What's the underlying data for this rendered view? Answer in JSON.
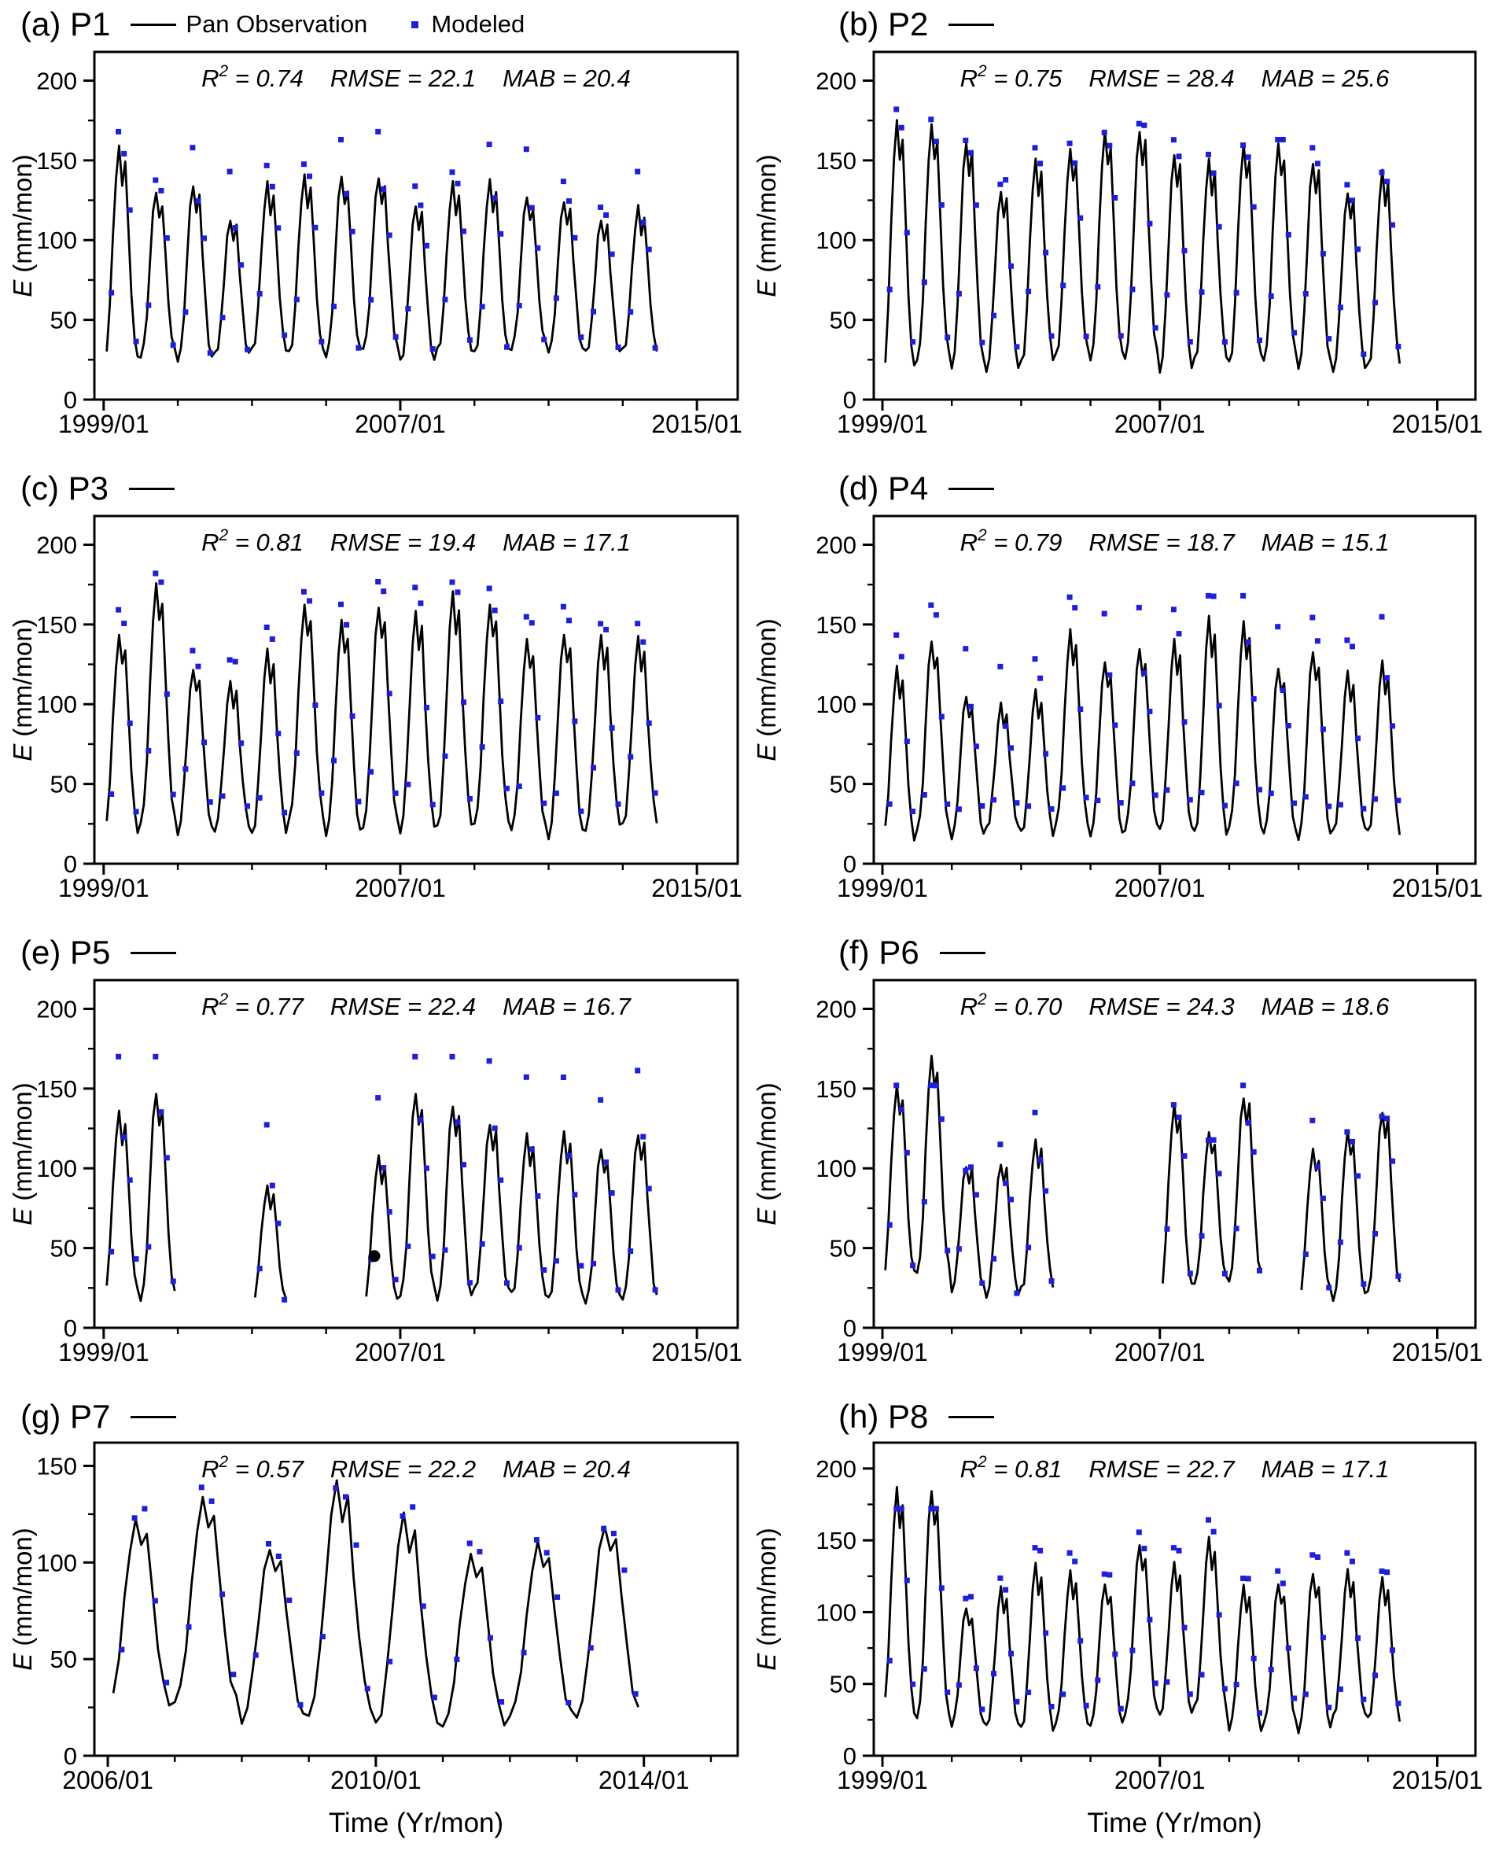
{
  "figure": {
    "legend": {
      "obs": "Pan Observation",
      "mod": "Modeled"
    },
    "x_axis_title": "Time (Yr/mon)",
    "y_axis_title_italic": "E",
    "y_axis_title_rest": " (mm/mon)",
    "stats_labels": {
      "r2": "R",
      "r2_sup": "2",
      "rmse": "RMSE",
      "mab": "MAB",
      "eq": " = "
    },
    "colors": {
      "obs_line": "#000000",
      "mod_dot": "#1f1fd6",
      "special_dot": "#000000",
      "axis": "#000000"
    },
    "seasonal_shape": [
      0.02,
      0.08,
      0.28,
      0.58,
      0.86,
      1.0,
      0.84,
      0.93,
      0.62,
      0.34,
      0.13,
      0.04
    ],
    "jitter": [
      14,
      -6,
      4,
      19,
      -3,
      8,
      -12,
      6,
      16,
      -9,
      2,
      10,
      -5,
      13,
      -15,
      3,
      20,
      -2,
      7,
      -10
    ]
  },
  "chart_data": [
    {
      "type": "line+scatter",
      "key": "a",
      "label": "(a)",
      "site": "P1",
      "col": "left",
      "show_legend": true,
      "bottom_row": false,
      "stats": {
        "r2": "0.74",
        "rmse": "22.1",
        "mab": "20.4"
      },
      "x_axis": {
        "majors": [
          [
            1999,
            "1999/01"
          ],
          [
            2007,
            "2007/01"
          ],
          [
            2015,
            "2015/01"
          ]
        ],
        "minor_step": 2,
        "range": [
          1998.75,
          2016.1
        ]
      },
      "y_axis": {
        "majors": [
          0,
          50,
          100,
          150,
          200
        ],
        "minor_step": 25,
        "range": [
          0,
          218
        ]
      },
      "obs_segments": [
        {
          "start_year": 1999,
          "peaks": [
            158,
            130,
            135,
            113,
            135,
            140,
            140,
            140,
            122,
            135,
            137,
            127,
            125,
            113,
            120
          ],
          "mins": [
            20,
            25,
            22,
            25,
            28,
            26,
            25,
            30,
            20,
            28,
            26,
            30,
            28,
            26,
            28
          ]
        }
      ],
      "mod_bias": 16,
      "mod_cap": 168
    },
    {
      "type": "line+scatter",
      "key": "b",
      "label": "(b)",
      "site": "P2",
      "col": "right",
      "show_legend": false,
      "bottom_row": false,
      "stats": {
        "r2": "0.75",
        "rmse": "28.4",
        "mab": "25.6"
      },
      "x_axis": {
        "majors": [
          [
            1999,
            "1999/01"
          ],
          [
            2007,
            "2007/01"
          ],
          [
            2015,
            "2015/01"
          ]
        ],
        "minor_step": 2,
        "range": [
          1998.75,
          2016.1
        ]
      },
      "y_axis": {
        "majors": [
          0,
          50,
          100,
          150,
          200
        ],
        "minor_step": 25,
        "range": [
          0,
          218
        ]
      },
      "obs_segments": [
        {
          "start_year": 1999,
          "peaks": [
            175,
            172,
            163,
            132,
            150,
            157,
            168,
            170,
            155,
            150,
            160,
            160,
            150,
            131,
            143
          ],
          "mins": [
            12,
            22,
            18,
            16,
            20,
            25,
            22,
            24,
            15,
            22,
            20,
            22,
            18,
            16,
            18
          ]
        }
      ],
      "mod_bias": 10,
      "mod_cap": 182
    },
    {
      "type": "line+scatter",
      "key": "c",
      "label": "(c)",
      "site": "P3",
      "col": "left",
      "show_legend": false,
      "bottom_row": false,
      "stats": {
        "r2": "0.81",
        "rmse": "19.4",
        "mab": "17.1"
      },
      "x_axis": {
        "majors": [
          [
            1999,
            "1999/01"
          ],
          [
            2007,
            "2007/01"
          ],
          [
            2015,
            "2015/01"
          ]
        ],
        "minor_step": 2,
        "range": [
          1998.75,
          2016.1
        ]
      },
      "y_axis": {
        "majors": [
          0,
          50,
          100,
          150,
          200
        ],
        "minor_step": 25,
        "range": [
          0,
          218
        ]
      },
      "obs_segments": [
        {
          "start_year": 1999,
          "peaks": [
            143,
            175,
            123,
            113,
            132,
            162,
            152,
            162,
            157,
            168,
            162,
            140,
            145,
            142,
            140
          ],
          "mins": [
            15,
            22,
            18,
            20,
            16,
            25,
            14,
            22,
            18,
            20,
            22,
            18,
            15,
            20,
            22
          ]
        }
      ],
      "mod_bias": 12,
      "mod_cap": 182
    },
    {
      "type": "line+scatter",
      "key": "d",
      "label": "(d)",
      "site": "P4",
      "col": "right",
      "show_legend": false,
      "bottom_row": false,
      "stats": {
        "r2": "0.79",
        "rmse": "18.7",
        "mab": "15.1"
      },
      "x_axis": {
        "majors": [
          [
            1999,
            "1999/01"
          ],
          [
            2007,
            "2007/01"
          ],
          [
            2015,
            "2015/01"
          ]
        ],
        "minor_step": 2,
        "range": [
          1998.75,
          2016.1
        ]
      },
      "y_axis": {
        "majors": [
          0,
          50,
          100,
          150,
          200
        ],
        "minor_step": 25,
        "range": [
          0,
          218
        ]
      },
      "obs_segments": [
        {
          "start_year": 1999,
          "peaks": [
            122,
            140,
            105,
            98,
            107,
            145,
            127,
            135,
            138,
            153,
            150,
            123,
            133,
            118,
            125
          ],
          "mins": [
            12,
            18,
            15,
            20,
            16,
            22,
            14,
            20,
            18,
            15,
            20,
            16,
            14,
            18,
            16
          ]
        }
      ],
      "mod_bias": 20,
      "mod_cap": 168
    },
    {
      "type": "line+scatter",
      "key": "e",
      "label": "(e)",
      "site": "P5",
      "col": "left",
      "show_legend": false,
      "bottom_row": false,
      "stats": {
        "r2": "0.77",
        "rmse": "22.4",
        "mab": "16.7"
      },
      "x_axis": {
        "majors": [
          [
            1999,
            "1999/01"
          ],
          [
            2007,
            "2007/01"
          ],
          [
            2015,
            "2015/01"
          ]
        ],
        "minor_step": 2,
        "range": [
          1998.75,
          2016.1
        ]
      },
      "y_axis": {
        "majors": [
          0,
          50,
          100,
          150,
          200
        ],
        "minor_step": 25,
        "range": [
          0,
          218
        ]
      },
      "obs_segments": [
        {
          "start_year": 1999,
          "peaks": [
            135,
            147
          ],
          "mins": [
            18,
            15
          ]
        },
        {
          "start_year": 2003,
          "peaks": [
            88
          ],
          "mins": [
            14
          ]
        },
        {
          "start_year": 2006,
          "peaks": [
            107,
            147,
            140,
            128,
            120,
            122,
            112,
            122
          ],
          "mins": [
            13,
            18,
            15,
            20,
            18,
            15,
            14,
            16
          ]
        }
      ],
      "extra_points": [
        {
          "t": 2006.3,
          "v": 45
        }
      ],
      "mod_bias": 26,
      "mod_cap": 170
    },
    {
      "type": "line+scatter",
      "key": "f",
      "label": "(f)",
      "site": "P6",
      "col": "right",
      "show_legend": false,
      "bottom_row": false,
      "stats": {
        "r2": "0.70",
        "rmse": "24.3",
        "mab": "18.6"
      },
      "x_axis": {
        "majors": [
          [
            1999,
            "1999/01"
          ],
          [
            2007,
            "2007/01"
          ],
          [
            2015,
            "2015/01"
          ]
        ],
        "minor_step": 2,
        "range": [
          1998.75,
          2016.1
        ]
      },
      "y_axis": {
        "majors": [
          0,
          50,
          100,
          150,
          200
        ],
        "minor_step": 25,
        "range": [
          0,
          218
        ]
      },
      "obs_segments": [
        {
          "start_year": 1999,
          "peaks": [
            152,
            170,
            103,
            104,
            117
          ],
          "mins": [
            28,
            32,
            22,
            18,
            22
          ]
        },
        {
          "start_year": 2007,
          "peaks": [
            140,
            122,
            146
          ],
          "mins": [
            20,
            26,
            28
          ]
        },
        {
          "start_year": 2011,
          "peaks": [
            112,
            123,
            137
          ],
          "mins": [
            18,
            15,
            22
          ]
        }
      ],
      "mod_bias": 4,
      "mod_cap": 152
    },
    {
      "type": "line+scatter",
      "key": "g",
      "label": "(g)",
      "site": "P7",
      "col": "left",
      "show_legend": false,
      "bottom_row": true,
      "stats": {
        "r2": "0.57",
        "rmse": "22.2",
        "mab": "20.4"
      },
      "x_axis": {
        "majors": [
          [
            2006,
            "2006/01"
          ],
          [
            2010,
            "2010/01"
          ],
          [
            2014,
            "2014/01"
          ]
        ],
        "minor_step": 1,
        "range": [
          2005.8,
          2015.4
        ]
      },
      "y_axis": {
        "majors": [
          0,
          50,
          100,
          150
        ],
        "minor_step": 25,
        "range": [
          0,
          162
        ]
      },
      "obs_segments": [
        {
          "start_year": 2006,
          "peaks": [
            122,
            133,
            108,
            141,
            123,
            104,
            110,
            120
          ],
          "mins": [
            23,
            25,
            17,
            20,
            14,
            13,
            18,
            20
          ]
        }
      ],
      "mod_bias": 8,
      "mod_cap": 150
    },
    {
      "type": "line+scatter",
      "key": "h",
      "label": "(h)",
      "site": "P8",
      "col": "right",
      "show_legend": false,
      "bottom_row": true,
      "stats": {
        "r2": "0.81",
        "rmse": "22.7",
        "mab": "17.1"
      },
      "x_axis": {
        "majors": [
          [
            1999,
            "1999/01"
          ],
          [
            2007,
            "2007/01"
          ],
          [
            2015,
            "2015/01"
          ]
        ],
        "minor_step": 2,
        "range": [
          1998.75,
          2016.1
        ]
      },
      "y_axis": {
        "majors": [
          0,
          50,
          100,
          150,
          200
        ],
        "minor_step": 25,
        "range": [
          0,
          218
        ]
      },
      "obs_segments": [
        {
          "start_year": 1999,
          "peaks": [
            185,
            185,
            103,
            115,
            132,
            127,
            120,
            147,
            132,
            150,
            117,
            120,
            127,
            127,
            122
          ],
          "mins": [
            25,
            22,
            20,
            18,
            15,
            20,
            18,
            28,
            25,
            30,
            15,
            20,
            15,
            25,
            22
          ]
        }
      ],
      "mod_bias": 10,
      "mod_cap": 172
    }
  ]
}
